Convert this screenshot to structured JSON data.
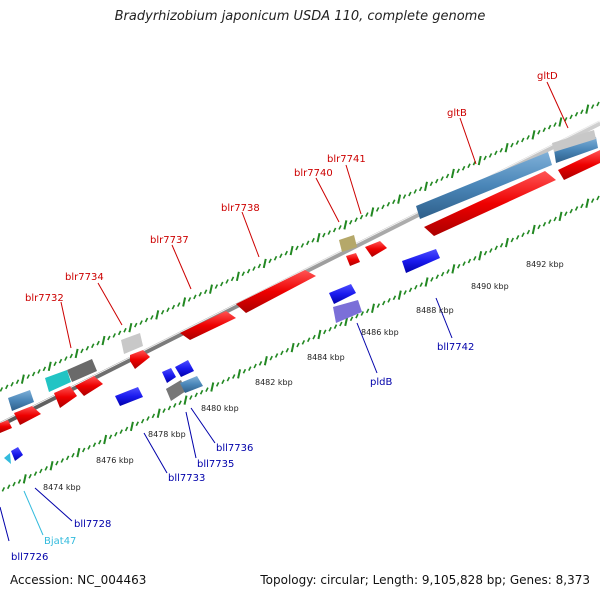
{
  "title": "Bradyrhizobium japonicum USDA 110, complete genome",
  "footer": {
    "accession": "Accession: NC_004463",
    "topology": "Topology: circular; Length: 9,105,828 bp; Genes: 8,373"
  },
  "colors": {
    "forward_label": "#cc0000",
    "reverse_label": "#0000aa",
    "rna_label": "#33bbdd",
    "backbone": "#888888",
    "tick": "#228822"
  },
  "forward_genes": [
    "blr7732",
    "blr7734",
    "blr7737",
    "blr7738",
    "blr7740",
    "blr7741",
    "gltB",
    "gltD"
  ],
  "reverse_genes": [
    "bll7726",
    "Bjat47",
    "bll7728",
    "bll7733",
    "bll7735",
    "bll7736",
    "pldB",
    "bll7742"
  ],
  "scale_labels": [
    "8474 kbp",
    "8476 kbp",
    "8478 kbp",
    "8480 kbp",
    "8482 kbp",
    "8484 kbp",
    "8486 kbp",
    "8488 kbp",
    "8490 kbp",
    "8492 kbp"
  ]
}
